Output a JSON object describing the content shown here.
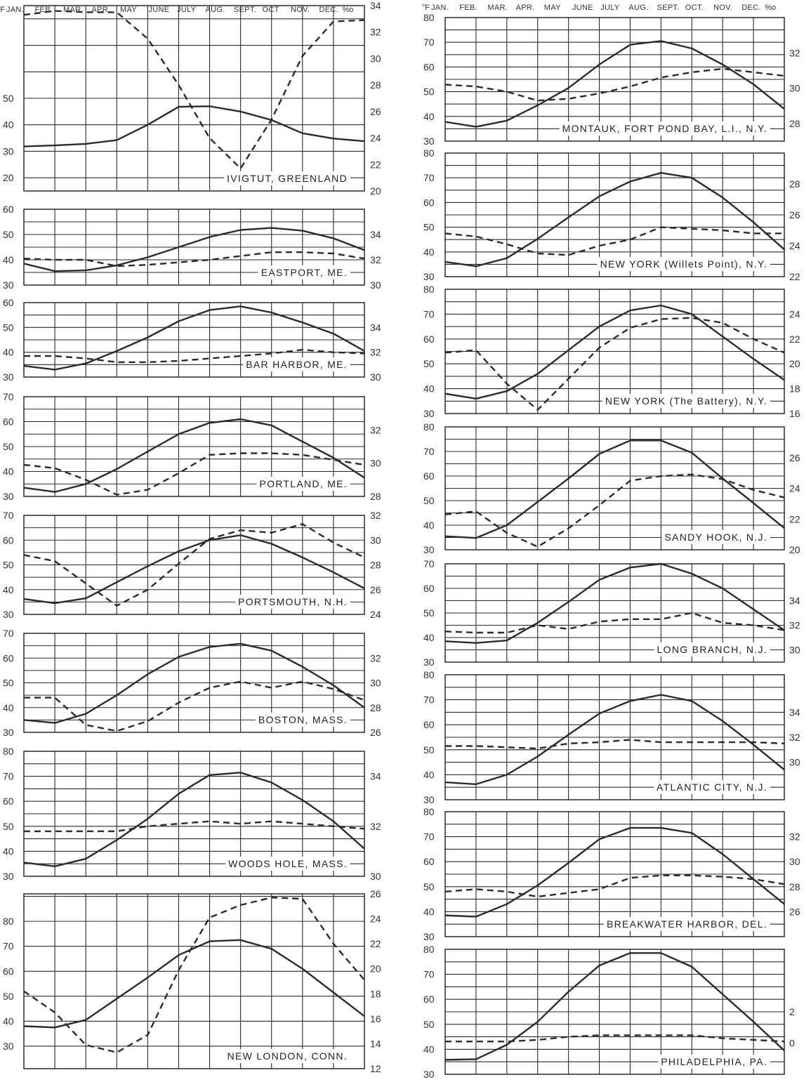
{
  "headers": [
    {
      "left_unit": "°F",
      "right_unit": "%o",
      "months": [
        "JAN.",
        "FEB.",
        "MAR.",
        "APR.",
        "MAY",
        "JUNE",
        "JULY",
        "AUG.",
        "SEPT.",
        "OCT",
        "NOV.",
        "DEC."
      ]
    },
    {
      "left_unit": "°F",
      "right_unit": "%o",
      "months": [
        "JAN.",
        "FEB.",
        "MAR.",
        "APR.",
        "MAY",
        "JUNE",
        "JULY",
        "AUG.",
        "SEPT.",
        "OCT.",
        "NOV.",
        "DEC."
      ]
    }
  ],
  "chart_data": [
    {
      "type": "line",
      "station": "IVIGTUT, GREENLAND",
      "column": "left",
      "ylim_temp": [
        15,
        85
      ],
      "ylim_sal": [
        20,
        34
      ],
      "left_ticks": [
        20,
        30,
        40,
        50
      ],
      "right_ticks": [
        20,
        22,
        24,
        26,
        28,
        30,
        32,
        34
      ],
      "series": [
        {
          "values": [
            31.8,
            32.2,
            32.8,
            34.2,
            40,
            46.8,
            47,
            45,
            41.8,
            36.8,
            34.8,
            33.8
          ]
        },
        {
          "values": [
            33.3,
            33.6,
            33.5,
            33.5,
            31.5,
            28.0,
            24.0,
            21.7,
            25.4,
            30.2,
            32.8,
            32.9
          ]
        }
      ]
    },
    {
      "type": "line",
      "station": "EASTPORT, ME.",
      "column": "left",
      "ylim_temp": [
        30,
        60
      ],
      "ylim_sal": [
        30,
        36
      ],
      "left_ticks": [
        30,
        40,
        50,
        60
      ],
      "right_ticks": [
        30,
        32,
        34
      ],
      "series": [
        {
          "values": [
            38.5,
            35.5,
            35.8,
            37.8,
            41,
            45,
            49,
            51.8,
            52.6,
            51.5,
            48.5,
            43.8
          ]
        },
        {
          "values": [
            32.1,
            32,
            32,
            31.5,
            31.6,
            31.8,
            32,
            32.3,
            32.6,
            32.6,
            32.5,
            32.1
          ]
        }
      ]
    },
    {
      "type": "line",
      "station": "BAR HARBOR, ME.",
      "column": "left",
      "ylim_temp": [
        30,
        60
      ],
      "ylim_sal": [
        30,
        36
      ],
      "left_ticks": [
        30,
        40,
        50,
        60
      ],
      "right_ticks": [
        30,
        32,
        34
      ],
      "series": [
        {
          "values": [
            34.5,
            33,
            35.5,
            40.5,
            46,
            52.5,
            57,
            58.5,
            56,
            52,
            47.5,
            40.5
          ]
        },
        {
          "values": [
            31.7,
            31.7,
            31.5,
            31.2,
            31.2,
            31.3,
            31.5,
            31.7,
            31.9,
            32.2,
            32,
            31.9
          ]
        }
      ]
    },
    {
      "type": "line",
      "station": "PORTLAND, ME.",
      "column": "left",
      "ylim_temp": [
        30,
        70
      ],
      "ylim_sal": [
        28,
        34
      ],
      "left_ticks": [
        30,
        40,
        50,
        60,
        70
      ],
      "right_ticks": [
        28,
        30,
        32
      ],
      "series": [
        {
          "values": [
            33.5,
            31.8,
            35,
            41,
            48,
            55,
            59.5,
            61,
            58.5,
            52,
            45.5,
            37.5
          ]
        },
        {
          "values": [
            29.9,
            29.7,
            29,
            28.1,
            28.4,
            29.4,
            30.5,
            30.6,
            30.6,
            30.5,
            30.2,
            29.9
          ]
        }
      ]
    },
    {
      "type": "line",
      "station": "PORTSMOUTH, N.H.",
      "column": "left",
      "ylim_temp": [
        30,
        70
      ],
      "ylim_sal": [
        24,
        32
      ],
      "left_ticks": [
        30,
        40,
        50,
        60,
        70
      ],
      "right_ticks": [
        24,
        26,
        28,
        30,
        32
      ],
      "series": [
        {
          "values": [
            36.2,
            34.5,
            36.5,
            43,
            49.5,
            55.5,
            60,
            62,
            58.5,
            53,
            47,
            40.5
          ]
        },
        {
          "values": [
            28.8,
            28.3,
            26.5,
            24.7,
            26,
            28.1,
            30.1,
            30.8,
            30.6,
            31.3,
            29.8,
            28.6
          ]
        }
      ]
    },
    {
      "type": "line",
      "station": "BOSTON, MASS.",
      "column": "left",
      "ylim_temp": [
        30,
        70
      ],
      "ylim_sal": [
        26,
        34
      ],
      "left_ticks": [
        30,
        40,
        50,
        60,
        70
      ],
      "right_ticks": [
        26,
        28,
        30,
        32
      ],
      "series": [
        {
          "values": [
            35,
            33.8,
            37.5,
            45,
            53.5,
            60.5,
            64.5,
            65.8,
            63,
            56.5,
            49,
            40
          ]
        },
        {
          "values": [
            28.8,
            28.8,
            26.6,
            26.1,
            26.9,
            28.4,
            29.6,
            30.1,
            29.6,
            30.1,
            29.5,
            28.6
          ]
        }
      ]
    },
    {
      "type": "line",
      "station": "WOODS HOLE, MASS.",
      "column": "left",
      "ylim_temp": [
        30,
        80
      ],
      "ylim_sal": [
        30,
        35
      ],
      "left_ticks": [
        30,
        40,
        50,
        60,
        70,
        80
      ],
      "right_ticks": [
        30,
        32,
        34
      ],
      "series": [
        {
          "values": [
            35.5,
            34,
            37,
            44.5,
            53,
            63,
            70.5,
            71.5,
            67.5,
            60.5,
            52,
            41
          ]
        },
        {
          "values": [
            31.8,
            31.8,
            31.8,
            31.8,
            32,
            32.1,
            32.2,
            32.1,
            32.2,
            32.1,
            32,
            31.9
          ]
        }
      ]
    },
    {
      "type": "line",
      "station": "NEW LONDON, CONN.",
      "column": "left",
      "ylim_temp": [
        21,
        91
      ],
      "ylim_sal": [
        12,
        26
      ],
      "left_ticks": [
        30,
        40,
        50,
        60,
        70,
        80
      ],
      "right_ticks": [
        12,
        14,
        16,
        18,
        20,
        22,
        24,
        26
      ],
      "series": [
        {
          "values": [
            38,
            37.5,
            40.5,
            49,
            57.5,
            66.5,
            72,
            72.5,
            69,
            61,
            51.5,
            42
          ]
        },
        {
          "values": [
            18.2,
            16.5,
            13.9,
            13.3,
            14.7,
            19.9,
            24.1,
            25.1,
            25.7,
            25.6,
            22.0,
            19.1
          ]
        }
      ]
    },
    {
      "type": "line",
      "station": "MONTAUK, FORT POND BAY, L.I., N.Y.",
      "column": "right",
      "ylim_temp": [
        30,
        80
      ],
      "ylim_sal": [
        27,
        34
      ],
      "left_ticks": [
        30,
        40,
        50,
        60,
        70,
        80
      ],
      "right_ticks": [
        28,
        30,
        32
      ],
      "series": [
        {
          "values": [
            37.8,
            35.8,
            38.3,
            44.5,
            51.5,
            61,
            69,
            70.5,
            67.5,
            61,
            53,
            43
          ]
        },
        {
          "values": [
            30.2,
            30.1,
            29.8,
            29.3,
            29.4,
            29.7,
            30.1,
            30.6,
            30.9,
            31.1,
            30.9,
            30.7
          ]
        }
      ]
    },
    {
      "type": "line",
      "station": "NEW YORK (Willets Point), N.Y.",
      "column": "right",
      "ylim_temp": [
        30,
        80
      ],
      "ylim_sal": [
        22,
        30
      ],
      "left_ticks": [
        30,
        40,
        50,
        60,
        70,
        80
      ],
      "right_ticks": [
        22,
        24,
        26,
        28
      ],
      "series": [
        {
          "values": [
            36,
            34.2,
            37.5,
            45.3,
            54,
            62.5,
            68.5,
            72,
            70,
            62,
            52,
            41
          ]
        },
        {
          "values": [
            24.8,
            24.6,
            24.1,
            23.5,
            23.4,
            24.0,
            24.4,
            25.2,
            25.1,
            25,
            24.8,
            24.8
          ]
        }
      ]
    },
    {
      "type": "line",
      "station": "NEW YORK (The Battery), N.Y.",
      "column": "right",
      "ylim_temp": [
        30,
        80
      ],
      "ylim_sal": [
        16,
        26
      ],
      "left_ticks": [
        30,
        40,
        50,
        60,
        70,
        80
      ],
      "right_ticks": [
        16,
        18,
        20,
        22,
        24
      ],
      "series": [
        {
          "values": [
            38,
            36,
            39,
            46,
            55.5,
            65,
            71.5,
            73.5,
            70,
            61,
            52,
            43.5
          ]
        },
        {
          "values": [
            20.9,
            21.1,
            18.4,
            16.3,
            18.8,
            21.3,
            22.9,
            23.6,
            23.7,
            23.3,
            22.0,
            20.9
          ]
        }
      ]
    },
    {
      "type": "line",
      "station": "SANDY HOOK, N.J.",
      "column": "right",
      "ylim_temp": [
        30,
        80
      ],
      "ylim_sal": [
        20,
        28
      ],
      "left_ticks": [
        30,
        40,
        50,
        60,
        70,
        80
      ],
      "right_ticks": [
        20,
        22,
        24,
        26
      ],
      "series": [
        {
          "values": [
            35.5,
            34.8,
            40,
            49.5,
            59,
            69,
            74.5,
            74.5,
            69.5,
            59,
            49,
            38.8
          ]
        },
        {
          "values": [
            22.3,
            22.5,
            21.1,
            20.2,
            21.4,
            22.9,
            24.5,
            24.8,
            24.9,
            24.6,
            23.9,
            23.4
          ]
        }
      ]
    },
    {
      "type": "line",
      "station": "LONG BRANCH, N.J.",
      "column": "right",
      "ylim_temp": [
        30,
        70
      ],
      "ylim_sal": [
        29,
        37
      ],
      "left_ticks": [
        30,
        40,
        50,
        60,
        70
      ],
      "right_ticks": [
        30,
        32,
        34
      ],
      "series": [
        {
          "values": [
            38.5,
            37.8,
            38.8,
            46,
            54.5,
            63.5,
            68.5,
            70,
            66,
            60,
            51.5,
            43
          ]
        },
        {
          "values": [
            31.5,
            31.4,
            31.4,
            32,
            31.7,
            32.3,
            32.5,
            32.5,
            33.0,
            32.2,
            32.0,
            31.6
          ]
        }
      ]
    },
    {
      "type": "line",
      "station": "ATLANTIC CITY, N.J.",
      "column": "right",
      "ylim_temp": [
        30,
        80
      ],
      "ylim_sal": [
        27,
        37
      ],
      "left_ticks": [
        30,
        40,
        50,
        60,
        70,
        80
      ],
      "right_ticks": [
        30,
        32,
        34
      ],
      "series": [
        {
          "values": [
            37,
            36.2,
            40,
            47.3,
            56,
            64.5,
            69.5,
            72,
            69.5,
            61.5,
            52,
            42
          ]
        },
        {
          "values": [
            31.3,
            31.3,
            31.2,
            31.1,
            31.5,
            31.6,
            31.8,
            31.6,
            31.6,
            31.6,
            31.6,
            31.5
          ]
        }
      ]
    },
    {
      "type": "line",
      "station": "BREAKWATER HARBOR, DEL.",
      "column": "right",
      "ylim_temp": [
        30,
        80
      ],
      "ylim_sal": [
        24,
        34
      ],
      "left_ticks": [
        30,
        40,
        50,
        60,
        70,
        80
      ],
      "right_ticks": [
        26,
        28,
        30,
        32
      ],
      "series": [
        {
          "values": [
            38.5,
            38,
            43,
            50.5,
            59.5,
            69,
            73.5,
            73.5,
            71.5,
            63,
            53,
            43
          ]
        },
        {
          "values": [
            27.6,
            27.8,
            27.6,
            27.2,
            27.5,
            27.8,
            28.7,
            28.9,
            28.9,
            28.8,
            28.6,
            28.2
          ]
        }
      ]
    },
    {
      "type": "line",
      "station": "PHILADELPHIA, PA.",
      "column": "right",
      "ylim_temp": [
        30,
        80
      ],
      "ylim_sal": [
        -2,
        6
      ],
      "left_ticks": [
        30,
        40,
        50,
        60,
        70,
        80
      ],
      "right_ticks": [
        0,
        2
      ],
      "series": [
        {
          "values": [
            35.8,
            36,
            41.8,
            51,
            63,
            73.5,
            78.5,
            78.5,
            73,
            62,
            51,
            39.5
          ]
        },
        {
          "values": [
            0.1,
            0.1,
            0.1,
            0.2,
            0.4,
            0.5,
            0.5,
            0.5,
            0.5,
            0.3,
            0.2,
            0.1
          ]
        }
      ]
    }
  ]
}
